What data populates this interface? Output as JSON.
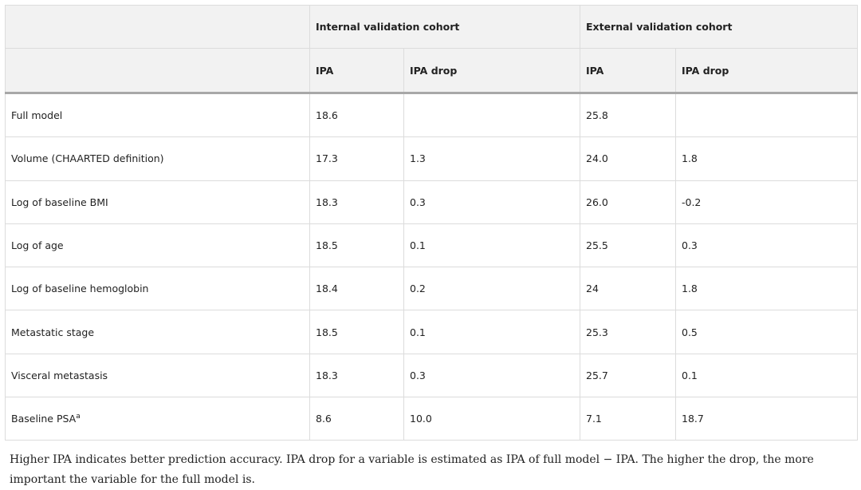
{
  "table": {
    "group_headers": [
      "Internal validation cohort",
      "External validation cohort"
    ],
    "columns": [
      "IPA",
      "IPA drop",
      "IPA",
      "IPA drop"
    ],
    "rows": [
      {
        "label": "Full model",
        "values": [
          "18.6",
          null,
          "25.8",
          null
        ]
      },
      {
        "label": "Volume (CHAARTED definition)",
        "values": [
          "17.3",
          "1.3",
          "24.0",
          "1.8"
        ]
      },
      {
        "label": "Log of baseline BMI",
        "values": [
          "18.3",
          "0.3",
          "26.0",
          "-0.2"
        ]
      },
      {
        "label": "Log of age",
        "values": [
          "18.5",
          "0.1",
          "25.5",
          "0.3"
        ]
      },
      {
        "label": "Log of baseline hemoglobin",
        "values": [
          "18.4",
          "0.2",
          "24",
          "1.8"
        ]
      },
      {
        "label": "Metastatic stage",
        "values": [
          "18.5",
          "0.1",
          "25.3",
          "0.5"
        ]
      },
      {
        "label": "Visceral metastasis",
        "values": [
          "18.3",
          "0.3",
          "25.7",
          "0.1"
        ]
      },
      {
        "label": "Baseline PSA",
        "marker": "a",
        "values": [
          "8.6",
          "10.0",
          "7.1",
          "18.7"
        ]
      }
    ]
  },
  "footnote": "Higher IPA indicates better prediction accuracy. IPA drop for a variable is estimated as IPA of full model − IPA. The higher the drop, the more important the variable for the full model is."
}
